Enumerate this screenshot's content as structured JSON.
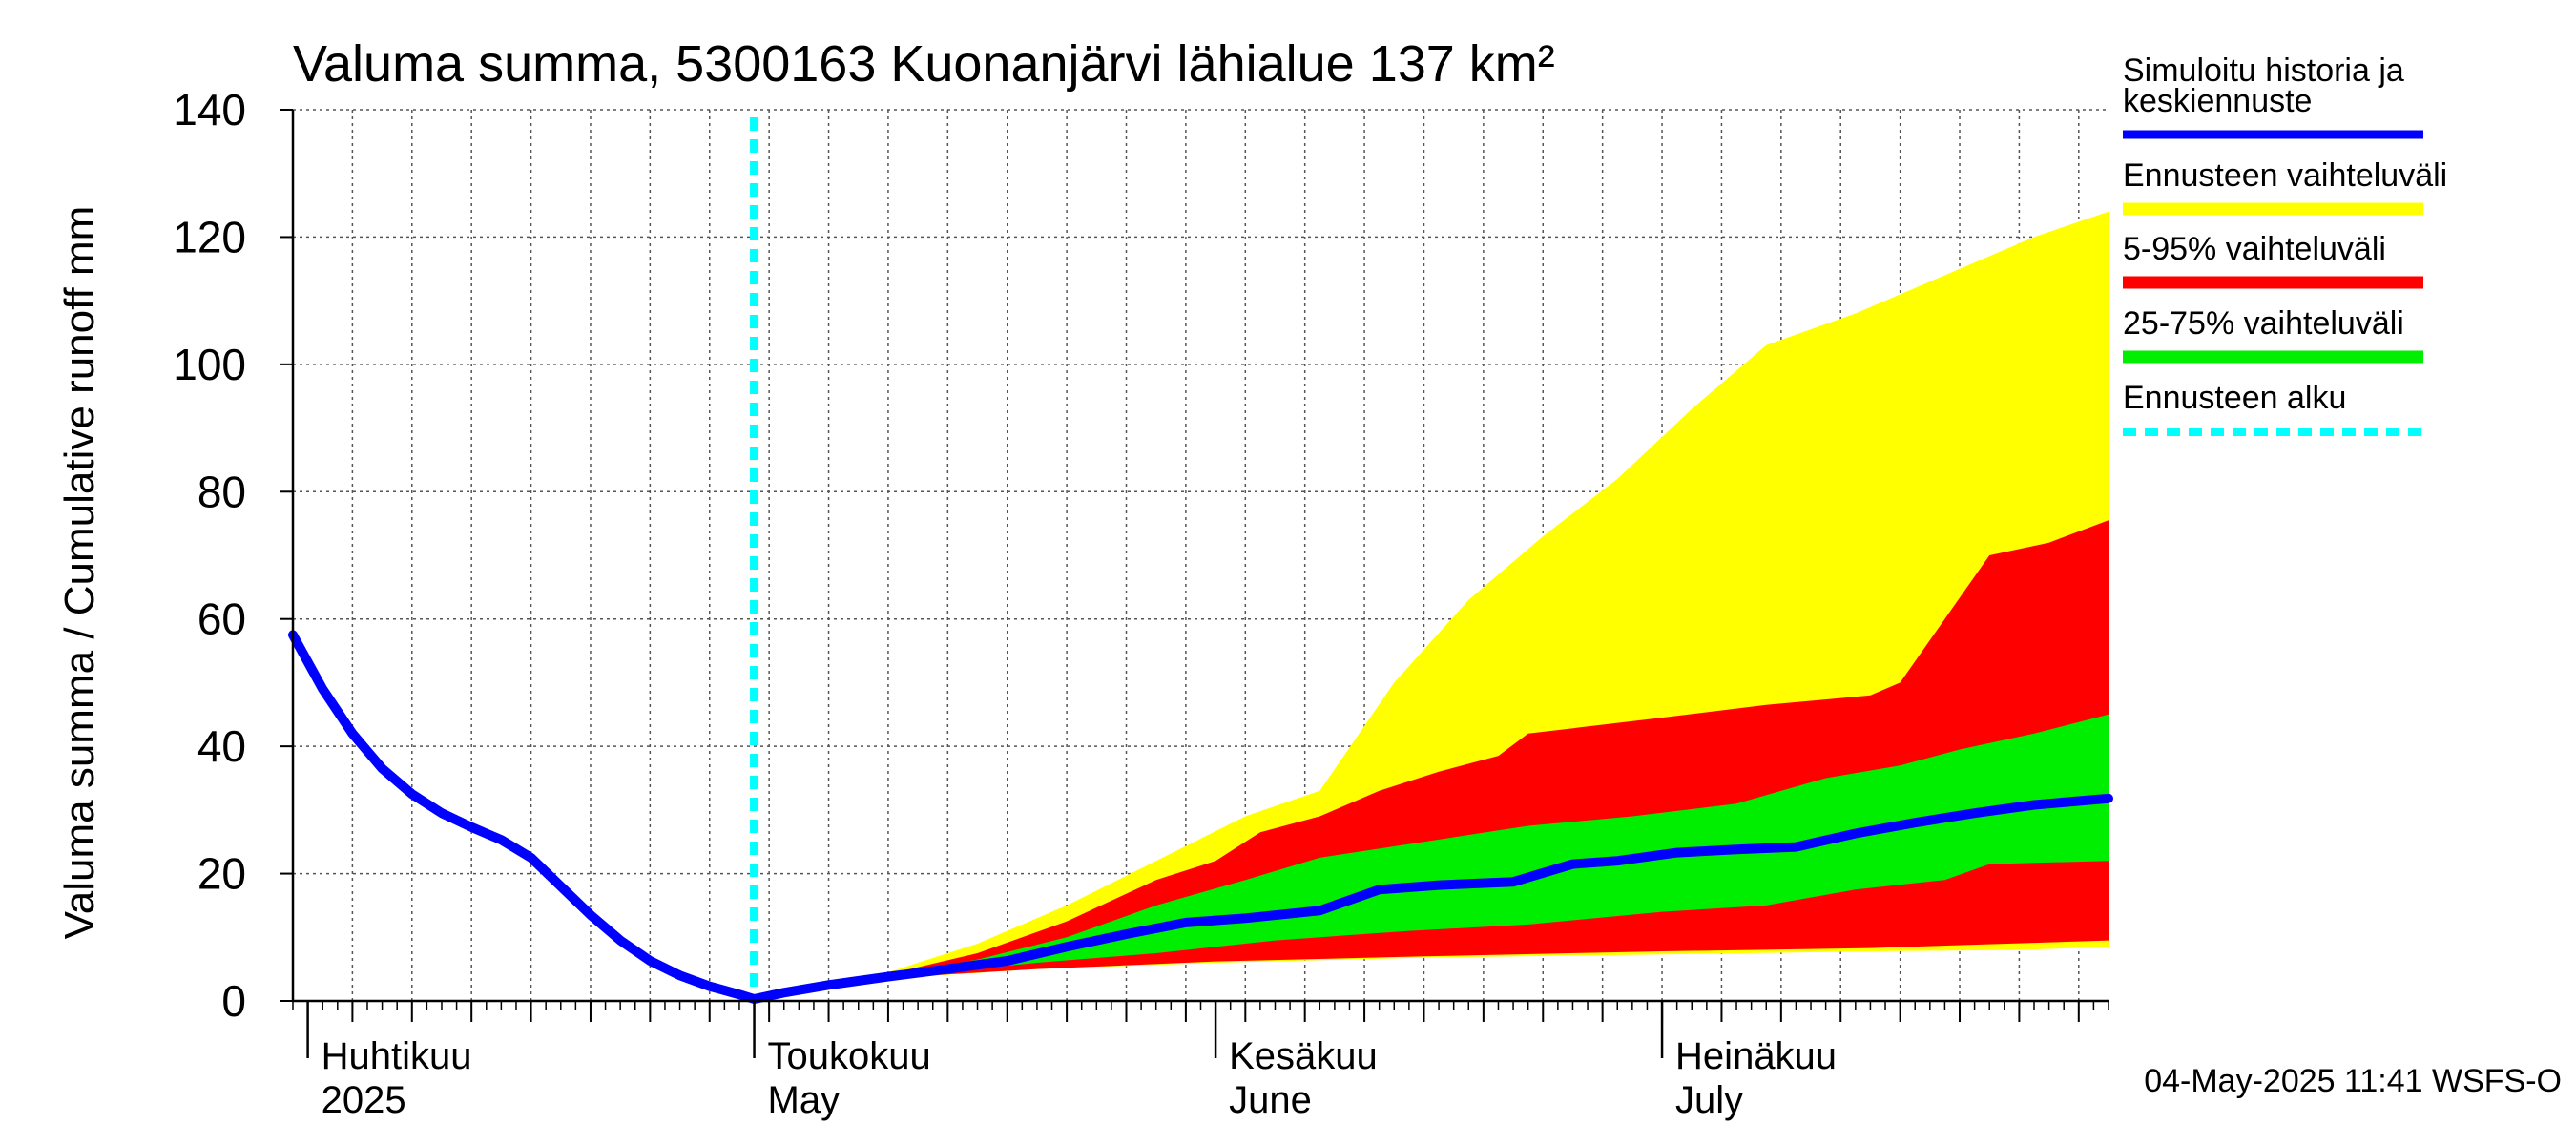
{
  "chart_data": {
    "type": "area",
    "title": "Valuma summa, 5300163 Kuonanjärvi lähialue 137 km²",
    "ylabel": "Valuma summa / Cumulative runoff    mm",
    "xlabel": "",
    "ylim": [
      0,
      140
    ],
    "yticks": [
      0,
      20,
      40,
      60,
      80,
      100,
      120,
      140
    ],
    "x_range": [
      "2025-03-31",
      "2025-07-31"
    ],
    "grid": true,
    "legend_position": "right",
    "month_labels": [
      {
        "date": "2025-04-01",
        "fi": "Huhtikuu",
        "en": "2025"
      },
      {
        "date": "2025-05-01",
        "fi": "Toukokuu",
        "en": "May"
      },
      {
        "date": "2025-06-01",
        "fi": "Kesäkuu",
        "en": "June"
      },
      {
        "date": "2025-07-01",
        "fi": "Heinäkuu",
        "en": "July"
      }
    ],
    "forecast_start": "2025-05-01",
    "timestamp": "04-May-2025 11:41 WSFS-O",
    "legend": [
      {
        "label": "Simuloitu historia ja keskiennuste",
        "color": "#0000ff",
        "style": "line"
      },
      {
        "label": "Ennusteen vaihteluväli",
        "color": "#ffff00",
        "style": "band"
      },
      {
        "label": "5-95% vaihteluväli",
        "color": "#ff0000",
        "style": "band"
      },
      {
        "label": "25-75% vaihteluväli",
        "color": "#00ee00",
        "style": "band"
      },
      {
        "label": "Ennusteen alku",
        "color": "#00ffff",
        "style": "dashed"
      }
    ],
    "series": [
      {
        "name": "Simuloitu historia ja keskiennuste",
        "color": "#0000ff",
        "points": [
          [
            "2025-03-31",
            57.5
          ],
          [
            "2025-04-02",
            49
          ],
          [
            "2025-04-04",
            42
          ],
          [
            "2025-04-06",
            36.5
          ],
          [
            "2025-04-08",
            32.5
          ],
          [
            "2025-04-10",
            29.5
          ],
          [
            "2025-04-12",
            27.3
          ],
          [
            "2025-04-14",
            25.3
          ],
          [
            "2025-04-16",
            22.5
          ],
          [
            "2025-04-18",
            18
          ],
          [
            "2025-04-20",
            13.5
          ],
          [
            "2025-04-22",
            9.5
          ],
          [
            "2025-04-24",
            6.3
          ],
          [
            "2025-04-26",
            4
          ],
          [
            "2025-04-28",
            2.3
          ],
          [
            "2025-04-30",
            1
          ],
          [
            "2025-05-01",
            0.3
          ],
          [
            "2025-05-03",
            1.3
          ],
          [
            "2025-05-06",
            2.5
          ],
          [
            "2025-05-10",
            3.8
          ],
          [
            "2025-05-14",
            5
          ],
          [
            "2025-05-18",
            6.3
          ],
          [
            "2025-05-22",
            8.5
          ],
          [
            "2025-05-26",
            10.5
          ],
          [
            "2025-05-30",
            12.3
          ],
          [
            "2025-06-03",
            13
          ],
          [
            "2025-06-08",
            14.2
          ],
          [
            "2025-06-12",
            17.5
          ],
          [
            "2025-06-16",
            18.2
          ],
          [
            "2025-06-21",
            18.7
          ],
          [
            "2025-06-25",
            21.5
          ],
          [
            "2025-06-28",
            22
          ],
          [
            "2025-07-02",
            23.3
          ],
          [
            "2025-07-06",
            23.8
          ],
          [
            "2025-07-10",
            24.2
          ],
          [
            "2025-07-14",
            26.3
          ],
          [
            "2025-07-18",
            28
          ],
          [
            "2025-07-22",
            29.5
          ],
          [
            "2025-07-26",
            30.8
          ],
          [
            "2025-07-31",
            31.8
          ]
        ]
      }
    ],
    "bands": [
      {
        "name": "Ennusteen vaihteluväli",
        "color": "#ffff00",
        "upper": [
          [
            "2025-05-01",
            0.3
          ],
          [
            "2025-05-10",
            4.5
          ],
          [
            "2025-05-16",
            9
          ],
          [
            "2025-05-22",
            15
          ],
          [
            "2025-05-28",
            22
          ],
          [
            "2025-06-03",
            29
          ],
          [
            "2025-06-08",
            33
          ],
          [
            "2025-06-13",
            50
          ],
          [
            "2025-06-18",
            63
          ],
          [
            "2025-06-23",
            73
          ],
          [
            "2025-06-28",
            82
          ],
          [
            "2025-07-03",
            93
          ],
          [
            "2025-07-08",
            103
          ],
          [
            "2025-07-14",
            108
          ],
          [
            "2025-07-20",
            114
          ],
          [
            "2025-07-26",
            120
          ],
          [
            "2025-07-31",
            124
          ]
        ],
        "lower": [
          [
            "2025-05-01",
            0.3
          ],
          [
            "2025-05-10",
            3.5
          ],
          [
            "2025-05-20",
            5
          ],
          [
            "2025-06-01",
            6
          ],
          [
            "2025-06-15",
            6.8
          ],
          [
            "2025-07-01",
            7.3
          ],
          [
            "2025-07-15",
            7.8
          ],
          [
            "2025-07-25",
            8
          ],
          [
            "2025-07-31",
            8.5
          ]
        ]
      },
      {
        "name": "5-95% vaihteluväli",
        "color": "#ff0000",
        "upper": [
          [
            "2025-05-01",
            0.3
          ],
          [
            "2025-05-10",
            4.2
          ],
          [
            "2025-05-16",
            7.5
          ],
          [
            "2025-05-22",
            12.5
          ],
          [
            "2025-05-28",
            19
          ],
          [
            "2025-06-01",
            22
          ],
          [
            "2025-06-04",
            26.5
          ],
          [
            "2025-06-08",
            29
          ],
          [
            "2025-06-12",
            33
          ],
          [
            "2025-06-16",
            36
          ],
          [
            "2025-06-20",
            38.5
          ],
          [
            "2025-06-22",
            42
          ],
          [
            "2025-07-01",
            44.5
          ],
          [
            "2025-07-08",
            46.5
          ],
          [
            "2025-07-15",
            48
          ],
          [
            "2025-07-17",
            50
          ],
          [
            "2025-07-20",
            60
          ],
          [
            "2025-07-23",
            70
          ],
          [
            "2025-07-27",
            72
          ],
          [
            "2025-07-31",
            75.5
          ]
        ],
        "lower": [
          [
            "2025-05-01",
            0.3
          ],
          [
            "2025-05-10",
            3.6
          ],
          [
            "2025-05-20",
            5
          ],
          [
            "2025-06-01",
            6.2
          ],
          [
            "2025-06-15",
            7
          ],
          [
            "2025-07-01",
            7.8
          ],
          [
            "2025-07-15",
            8.3
          ],
          [
            "2025-07-31",
            9.5
          ]
        ]
      },
      {
        "name": "25-75% vaihteluväli",
        "color": "#00ee00",
        "upper": [
          [
            "2025-05-01",
            0.3
          ],
          [
            "2025-05-10",
            4
          ],
          [
            "2025-05-16",
            6.5
          ],
          [
            "2025-05-22",
            10
          ],
          [
            "2025-05-28",
            15
          ],
          [
            "2025-06-03",
            19
          ],
          [
            "2025-06-08",
            22.5
          ],
          [
            "2025-06-15",
            25
          ],
          [
            "2025-06-22",
            27.5
          ],
          [
            "2025-06-29",
            29
          ],
          [
            "2025-07-06",
            31
          ],
          [
            "2025-07-12",
            35
          ],
          [
            "2025-07-17",
            37
          ],
          [
            "2025-07-21",
            39.5
          ],
          [
            "2025-07-26",
            42
          ],
          [
            "2025-07-31",
            45
          ]
        ],
        "lower": [
          [
            "2025-05-01",
            0.3
          ],
          [
            "2025-05-10",
            3.7
          ],
          [
            "2025-05-20",
            6
          ],
          [
            "2025-05-28",
            7.5
          ],
          [
            "2025-06-05",
            9.5
          ],
          [
            "2025-06-14",
            11
          ],
          [
            "2025-06-22",
            12
          ],
          [
            "2025-07-01",
            14
          ],
          [
            "2025-07-08",
            15
          ],
          [
            "2025-07-14",
            17.5
          ],
          [
            "2025-07-20",
            19
          ],
          [
            "2025-07-23",
            21.5
          ],
          [
            "2025-07-31",
            22
          ]
        ]
      }
    ]
  }
}
